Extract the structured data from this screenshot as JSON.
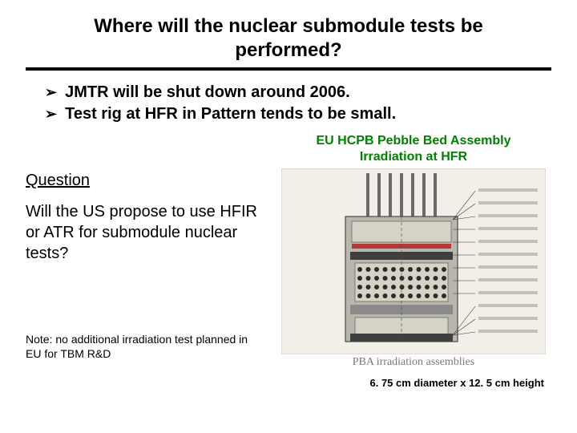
{
  "title": "Where will the nuclear submodule tests be performed?",
  "bullets": [
    "JMTR will be shut down around 2006.",
    "Test rig at HFR in Pattern tends to be small."
  ],
  "bullet_glyph": "➢",
  "question": {
    "heading": "Question",
    "body": "Will the US propose to use HFIR or ATR for submodule nuclear tests?"
  },
  "note": "Note: no additional irradiation test planned in EU for TBM R&D",
  "figure": {
    "title_line1": "EU HCPB Pebble Bed Assembly",
    "title_line2": "Irradiation at HFR",
    "caption_serif": "PBA irradiation assemblies",
    "dimensions": "6. 75 cm diameter x 12. 5 cm height",
    "colors": {
      "outer_bg": "#f2efe9",
      "assembly_fill": "#b9b6ad",
      "assembly_stroke": "#4a4a4a",
      "rod": "#6b6b6b",
      "band_dark": "#3f3f3f",
      "band_mid": "#8a8a8a",
      "inner_top": "#d6d2c6",
      "accent_red": "#b33a3a",
      "pebble_dark": "#2b2b2b",
      "label_line": "#333333",
      "label_text": "#333333"
    },
    "rods_x": [
      108,
      122,
      136,
      150,
      164,
      178,
      192
    ],
    "label_lines_y": [
      28,
      44,
      60,
      76,
      92,
      108,
      124,
      140,
      156,
      172,
      188,
      204
    ]
  }
}
